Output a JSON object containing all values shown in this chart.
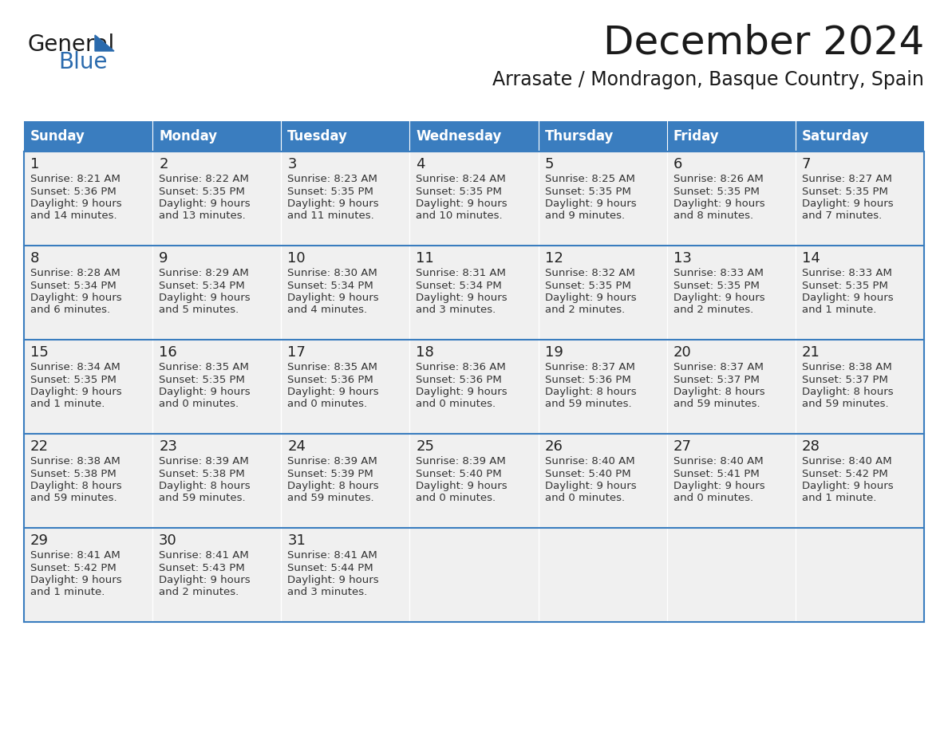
{
  "title": "December 2024",
  "subtitle": "Arrasate / Mondragon, Basque Country, Spain",
  "header_color": "#3a7dbf",
  "header_text_color": "#ffffff",
  "cell_bg_color": "#f0f0f0",
  "cell_border_color": "#3a7dbf",
  "day_number_color": "#222222",
  "cell_text_color": "#333333",
  "title_color": "#1a1a1a",
  "subtitle_color": "#1a1a1a",
  "days_of_week": [
    "Sunday",
    "Monday",
    "Tuesday",
    "Wednesday",
    "Thursday",
    "Friday",
    "Saturday"
  ],
  "weeks": [
    [
      {
        "day": 1,
        "sunrise": "8:21 AM",
        "sunset": "5:36 PM",
        "daylight_hours": 9,
        "daylight_minutes": 14
      },
      {
        "day": 2,
        "sunrise": "8:22 AM",
        "sunset": "5:35 PM",
        "daylight_hours": 9,
        "daylight_minutes": 13
      },
      {
        "day": 3,
        "sunrise": "8:23 AM",
        "sunset": "5:35 PM",
        "daylight_hours": 9,
        "daylight_minutes": 11
      },
      {
        "day": 4,
        "sunrise": "8:24 AM",
        "sunset": "5:35 PM",
        "daylight_hours": 9,
        "daylight_minutes": 10
      },
      {
        "day": 5,
        "sunrise": "8:25 AM",
        "sunset": "5:35 PM",
        "daylight_hours": 9,
        "daylight_minutes": 9
      },
      {
        "day": 6,
        "sunrise": "8:26 AM",
        "sunset": "5:35 PM",
        "daylight_hours": 9,
        "daylight_minutes": 8
      },
      {
        "day": 7,
        "sunrise": "8:27 AM",
        "sunset": "5:35 PM",
        "daylight_hours": 9,
        "daylight_minutes": 7
      }
    ],
    [
      {
        "day": 8,
        "sunrise": "8:28 AM",
        "sunset": "5:34 PM",
        "daylight_hours": 9,
        "daylight_minutes": 6
      },
      {
        "day": 9,
        "sunrise": "8:29 AM",
        "sunset": "5:34 PM",
        "daylight_hours": 9,
        "daylight_minutes": 5
      },
      {
        "day": 10,
        "sunrise": "8:30 AM",
        "sunset": "5:34 PM",
        "daylight_hours": 9,
        "daylight_minutes": 4
      },
      {
        "day": 11,
        "sunrise": "8:31 AM",
        "sunset": "5:34 PM",
        "daylight_hours": 9,
        "daylight_minutes": 3
      },
      {
        "day": 12,
        "sunrise": "8:32 AM",
        "sunset": "5:35 PM",
        "daylight_hours": 9,
        "daylight_minutes": 2
      },
      {
        "day": 13,
        "sunrise": "8:33 AM",
        "sunset": "5:35 PM",
        "daylight_hours": 9,
        "daylight_minutes": 2
      },
      {
        "day": 14,
        "sunrise": "8:33 AM",
        "sunset": "5:35 PM",
        "daylight_hours": 9,
        "daylight_minutes": 1
      }
    ],
    [
      {
        "day": 15,
        "sunrise": "8:34 AM",
        "sunset": "5:35 PM",
        "daylight_hours": 9,
        "daylight_minutes": 1
      },
      {
        "day": 16,
        "sunrise": "8:35 AM",
        "sunset": "5:35 PM",
        "daylight_hours": 9,
        "daylight_minutes": 0
      },
      {
        "day": 17,
        "sunrise": "8:35 AM",
        "sunset": "5:36 PM",
        "daylight_hours": 9,
        "daylight_minutes": 0
      },
      {
        "day": 18,
        "sunrise": "8:36 AM",
        "sunset": "5:36 PM",
        "daylight_hours": 9,
        "daylight_minutes": 0
      },
      {
        "day": 19,
        "sunrise": "8:37 AM",
        "sunset": "5:36 PM",
        "daylight_hours": 8,
        "daylight_minutes": 59
      },
      {
        "day": 20,
        "sunrise": "8:37 AM",
        "sunset": "5:37 PM",
        "daylight_hours": 8,
        "daylight_minutes": 59
      },
      {
        "day": 21,
        "sunrise": "8:38 AM",
        "sunset": "5:37 PM",
        "daylight_hours": 8,
        "daylight_minutes": 59
      }
    ],
    [
      {
        "day": 22,
        "sunrise": "8:38 AM",
        "sunset": "5:38 PM",
        "daylight_hours": 8,
        "daylight_minutes": 59
      },
      {
        "day": 23,
        "sunrise": "8:39 AM",
        "sunset": "5:38 PM",
        "daylight_hours": 8,
        "daylight_minutes": 59
      },
      {
        "day": 24,
        "sunrise": "8:39 AM",
        "sunset": "5:39 PM",
        "daylight_hours": 8,
        "daylight_minutes": 59
      },
      {
        "day": 25,
        "sunrise": "8:39 AM",
        "sunset": "5:40 PM",
        "daylight_hours": 9,
        "daylight_minutes": 0
      },
      {
        "day": 26,
        "sunrise": "8:40 AM",
        "sunset": "5:40 PM",
        "daylight_hours": 9,
        "daylight_minutes": 0
      },
      {
        "day": 27,
        "sunrise": "8:40 AM",
        "sunset": "5:41 PM",
        "daylight_hours": 9,
        "daylight_minutes": 0
      },
      {
        "day": 28,
        "sunrise": "8:40 AM",
        "sunset": "5:42 PM",
        "daylight_hours": 9,
        "daylight_minutes": 1
      }
    ],
    [
      {
        "day": 29,
        "sunrise": "8:41 AM",
        "sunset": "5:42 PM",
        "daylight_hours": 9,
        "daylight_minutes": 1
      },
      {
        "day": 30,
        "sunrise": "8:41 AM",
        "sunset": "5:43 PM",
        "daylight_hours": 9,
        "daylight_minutes": 2
      },
      {
        "day": 31,
        "sunrise": "8:41 AM",
        "sunset": "5:44 PM",
        "daylight_hours": 9,
        "daylight_minutes": 3
      },
      null,
      null,
      null,
      null
    ]
  ],
  "logo_text_general": "General",
  "logo_text_blue": "Blue",
  "logo_color_general": "#1a1a1a",
  "logo_color_blue": "#2a6aad",
  "logo_triangle_color": "#2a6aad",
  "figure_width": 11.88,
  "figure_height": 9.18,
  "dpi": 100
}
